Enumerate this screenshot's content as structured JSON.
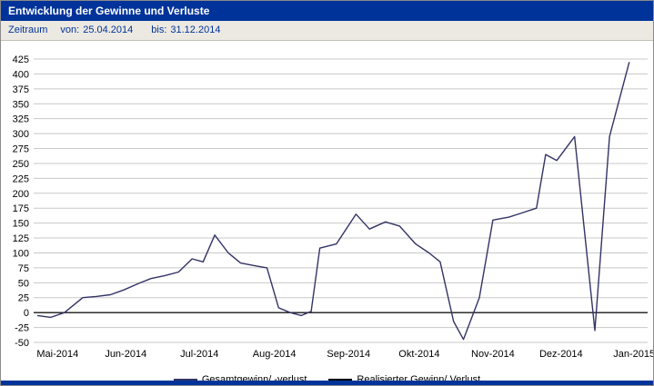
{
  "header": {
    "title": "Entwicklung der Gewinne und Verluste"
  },
  "period": {
    "label": "Zeitraum",
    "from_label": "von:",
    "from_value": "25.04.2014",
    "to_label": "bis:",
    "to_value": "31.12.2014"
  },
  "legend": {
    "items": [
      {
        "label": "Gesamtgewinn/ -verlust",
        "color": "#333366"
      },
      {
        "label": "Realisierter Gewinn/ Verlust",
        "color": "#000000"
      }
    ]
  },
  "colors": {
    "header_bg": "#003399",
    "header_text": "#ffffff",
    "period_bg": "#ece9e2",
    "period_text": "#003399",
    "grid": "#c8c8c8",
    "zero_line": "#000000",
    "series_main": "#333366",
    "footer_bar": "#003399"
  },
  "chart_data": {
    "type": "line",
    "title": "Entwicklung der Gewinne und Verluste",
    "xlabel": "",
    "ylabel": "",
    "ylim": [
      -50,
      425
    ],
    "ytick_step": 25,
    "grid": true,
    "legend_position": "bottom",
    "x_labels": [
      {
        "label": "Mai-2014",
        "x": 0.039
      },
      {
        "label": "Jun-2014",
        "x": 0.15
      },
      {
        "label": "Jul-2014",
        "x": 0.27
      },
      {
        "label": "Aug-2014",
        "x": 0.392
      },
      {
        "label": "Sep-2014",
        "x": 0.513
      },
      {
        "label": "Okt-2014",
        "x": 0.628
      },
      {
        "label": "Nov-2014",
        "x": 0.748
      },
      {
        "label": "Dez-2014",
        "x": 0.859
      },
      {
        "label": "Jan-2015",
        "x": 0.978
      }
    ],
    "series": [
      {
        "name": "Gesamtgewinn/ -verlust",
        "color": "#333366",
        "width": 1.4,
        "points": [
          [
            0.006,
            -5
          ],
          [
            0.028,
            -8
          ],
          [
            0.05,
            0
          ],
          [
            0.08,
            25
          ],
          [
            0.102,
            27
          ],
          [
            0.125,
            30
          ],
          [
            0.147,
            38
          ],
          [
            0.169,
            48
          ],
          [
            0.191,
            57
          ],
          [
            0.214,
            62
          ],
          [
            0.236,
            68
          ],
          [
            0.258,
            90
          ],
          [
            0.276,
            85
          ],
          [
            0.295,
            130
          ],
          [
            0.317,
            100
          ],
          [
            0.337,
            83
          ],
          [
            0.358,
            79
          ],
          [
            0.38,
            75
          ],
          [
            0.399,
            8
          ],
          [
            0.418,
            0
          ],
          [
            0.436,
            -5
          ],
          [
            0.452,
            2
          ],
          [
            0.466,
            108
          ],
          [
            0.493,
            115
          ],
          [
            0.525,
            165
          ],
          [
            0.547,
            140
          ],
          [
            0.573,
            152
          ],
          [
            0.596,
            145
          ],
          [
            0.622,
            115
          ],
          [
            0.644,
            100
          ],
          [
            0.662,
            85
          ],
          [
            0.684,
            -15
          ],
          [
            0.7,
            -45
          ],
          [
            0.726,
            25
          ],
          [
            0.748,
            155
          ],
          [
            0.774,
            160
          ],
          [
            0.795,
            167
          ],
          [
            0.819,
            175
          ],
          [
            0.834,
            265
          ],
          [
            0.852,
            255
          ],
          [
            0.881,
            295
          ],
          [
            0.914,
            -30
          ],
          [
            0.938,
            295
          ],
          [
            0.97,
            420
          ]
        ]
      },
      {
        "name": "Realisierter Gewinn/ Verlust",
        "color": "#000000",
        "width": 1,
        "points": [
          [
            0.0,
            0
          ],
          [
            1.0,
            0
          ]
        ]
      }
    ]
  }
}
